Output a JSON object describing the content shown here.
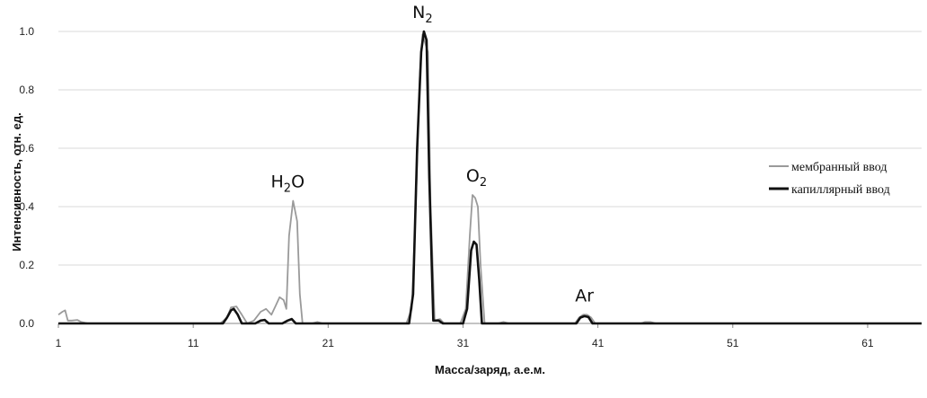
{
  "chart_data": {
    "type": "line",
    "title": "",
    "xlabel": "Масса/заряд, а.е.м.",
    "ylabel": "Интенсивность, отн. ед.",
    "xlim": [
      1,
      65
    ],
    "ylim": [
      0,
      1.0
    ],
    "x_ticks": [
      "1",
      "11",
      "21",
      "31",
      "41",
      "51",
      "61"
    ],
    "y_ticks": [
      "0.0",
      "0.2",
      "0.4",
      "0.6",
      "0.8",
      "1.0"
    ],
    "grid": true,
    "legend_position": "right",
    "annotations": [
      {
        "base": "H",
        "sub": "2",
        "rest": "O",
        "x": 18,
        "y": 0.42
      },
      {
        "base": "N",
        "sub": "2",
        "rest": "",
        "x": 28,
        "y": 1.0
      },
      {
        "base": "O",
        "sub": "2",
        "rest": "",
        "x": 32,
        "y": 0.44
      },
      {
        "base": "Ar",
        "sub": "",
        "rest": "",
        "x": 40,
        "y": 0.03
      }
    ],
    "series": [
      {
        "name": "мембранный ввод",
        "color": "#9a9a9a",
        "points": [
          [
            1,
            0.03
          ],
          [
            1.3,
            0.04
          ],
          [
            1.5,
            0.045
          ],
          [
            1.7,
            0.01
          ],
          [
            2,
            0.01
          ],
          [
            2.4,
            0.012
          ],
          [
            2.7,
            0.005
          ],
          [
            3.2,
            0.0
          ],
          [
            13,
            0.0
          ],
          [
            13.5,
            0.02
          ],
          [
            13.8,
            0.055
          ],
          [
            14.2,
            0.058
          ],
          [
            14.6,
            0.03
          ],
          [
            15,
            0.0
          ],
          [
            15.5,
            0.01
          ],
          [
            16,
            0.04
          ],
          [
            16.4,
            0.05
          ],
          [
            16.8,
            0.03
          ],
          [
            17.1,
            0.06
          ],
          [
            17.4,
            0.09
          ],
          [
            17.7,
            0.08
          ],
          [
            17.9,
            0.05
          ],
          [
            18.1,
            0.3
          ],
          [
            18.4,
            0.42
          ],
          [
            18.7,
            0.35
          ],
          [
            18.9,
            0.1
          ],
          [
            19.1,
            0.0
          ],
          [
            19.8,
            0.0
          ],
          [
            20.2,
            0.005
          ],
          [
            20.6,
            0.0
          ],
          [
            26.8,
            0.0
          ],
          [
            27.2,
            0.05
          ],
          [
            27.5,
            0.4
          ],
          [
            27.8,
            0.85
          ],
          [
            28.0,
            0.99
          ],
          [
            28.2,
            0.96
          ],
          [
            28.4,
            0.93
          ],
          [
            28.6,
            0.4
          ],
          [
            28.9,
            0.01
          ],
          [
            29.3,
            0.015
          ],
          [
            29.6,
            0.0
          ],
          [
            30.8,
            0.0
          ],
          [
            31.2,
            0.05
          ],
          [
            31.5,
            0.3
          ],
          [
            31.7,
            0.44
          ],
          [
            31.9,
            0.43
          ],
          [
            32.1,
            0.4
          ],
          [
            32.3,
            0.2
          ],
          [
            32.6,
            0.0
          ],
          [
            33.6,
            0.0
          ],
          [
            34,
            0.005
          ],
          [
            34.4,
            0.0
          ],
          [
            39.3,
            0.0
          ],
          [
            39.6,
            0.02
          ],
          [
            39.9,
            0.03
          ],
          [
            40.2,
            0.03
          ],
          [
            40.5,
            0.02
          ],
          [
            40.8,
            0.0
          ],
          [
            44.2,
            0.0
          ],
          [
            44.5,
            0.005
          ],
          [
            44.9,
            0.005
          ],
          [
            45.3,
            0.0
          ],
          [
            65,
            0.0
          ]
        ]
      },
      {
        "name": "капиллярный ввод",
        "color": "#111111",
        "points": [
          [
            1,
            0.0
          ],
          [
            13.2,
            0.0
          ],
          [
            13.5,
            0.02
          ],
          [
            13.8,
            0.045
          ],
          [
            14.0,
            0.05
          ],
          [
            14.3,
            0.03
          ],
          [
            14.6,
            0.0
          ],
          [
            15.6,
            0.0
          ],
          [
            16.0,
            0.01
          ],
          [
            16.3,
            0.012
          ],
          [
            16.6,
            0.0
          ],
          [
            17.6,
            0.0
          ],
          [
            18.0,
            0.01
          ],
          [
            18.3,
            0.015
          ],
          [
            18.6,
            0.0
          ],
          [
            27.0,
            0.0
          ],
          [
            27.3,
            0.1
          ],
          [
            27.6,
            0.6
          ],
          [
            27.9,
            0.93
          ],
          [
            28.1,
            1.0
          ],
          [
            28.3,
            0.97
          ],
          [
            28.5,
            0.5
          ],
          [
            28.8,
            0.01
          ],
          [
            29.2,
            0.01
          ],
          [
            29.5,
            0.0
          ],
          [
            31.0,
            0.0
          ],
          [
            31.3,
            0.05
          ],
          [
            31.6,
            0.25
          ],
          [
            31.8,
            0.28
          ],
          [
            32.0,
            0.27
          ],
          [
            32.2,
            0.15
          ],
          [
            32.4,
            0.0
          ],
          [
            39.4,
            0.0
          ],
          [
            39.7,
            0.02
          ],
          [
            40.0,
            0.025
          ],
          [
            40.3,
            0.022
          ],
          [
            40.6,
            0.0
          ],
          [
            65,
            0.0
          ]
        ]
      }
    ]
  }
}
